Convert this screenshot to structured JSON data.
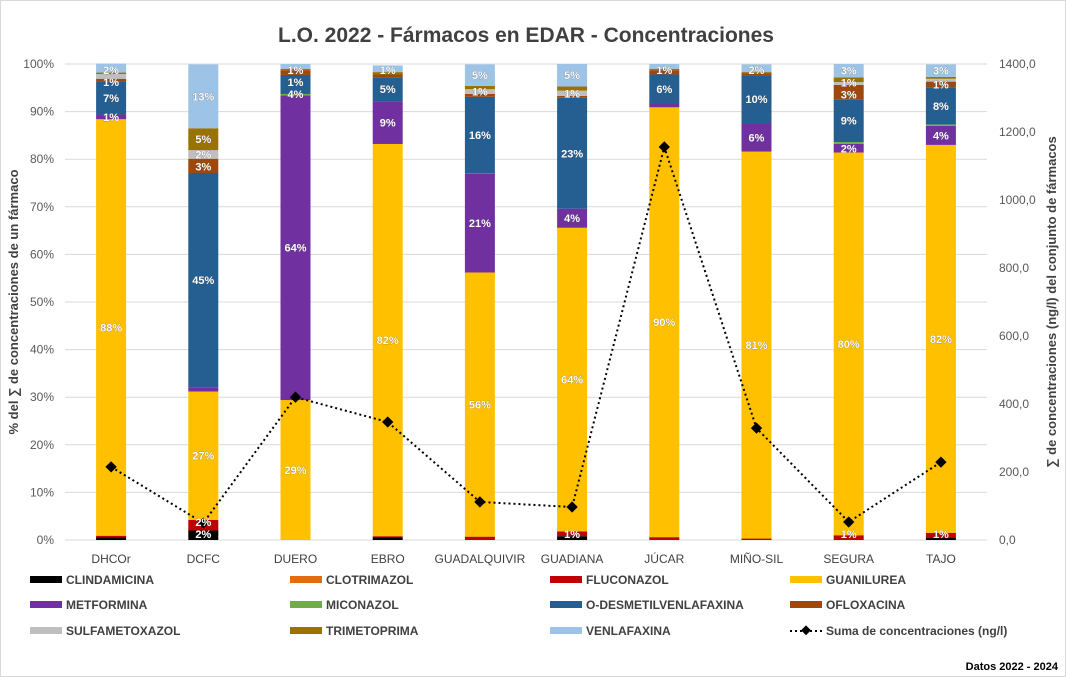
{
  "chart_data": {
    "type": "bar",
    "stacked": "percent",
    "title": "L.O. 2022 - Fármacos en EDAR - Concentraciones",
    "ylabel": "% del ∑ de concentraciones de un fármaco",
    "y2label": "∑ de concentraciones (ng/l) del conjunto de fármacos",
    "ylim": [
      0,
      100
    ],
    "y2lim": [
      0,
      1400
    ],
    "yticks": [
      "0%",
      "10%",
      "20%",
      "30%",
      "40%",
      "50%",
      "60%",
      "70%",
      "80%",
      "90%",
      "100%"
    ],
    "y2ticks": [
      "0,0",
      "200,0",
      "400,0",
      "600,0",
      "800,0",
      "1000,0",
      "1200,0",
      "1400,0"
    ],
    "grid": true,
    "legend": "bottom",
    "categories": [
      "DHCOr",
      "DCFC",
      "DUERO",
      "EBRO",
      "GUADALQUIVIR",
      "GUADIANA",
      "JÚCAR",
      "MIÑO-SIL",
      "SEGURA",
      "TAJO"
    ],
    "series": [
      {
        "name": "CLINDAMICINA",
        "color": "#000000",
        "values": [
          0.6,
          2.0,
          0,
          0.6,
          0,
          0.8,
          0,
          0,
          0,
          0.5
        ]
      },
      {
        "name": "CLOTRIMAZOL",
        "color": "#e46c0a",
        "values": [
          0,
          0,
          0,
          0,
          0,
          0,
          0,
          0,
          0,
          0
        ]
      },
      {
        "name": "FLUCONAZOL",
        "color": "#c00000",
        "values": [
          0.3,
          2.2,
          0,
          0.2,
          0.7,
          1.0,
          0.6,
          0.3,
          1.0,
          1.0
        ]
      },
      {
        "name": "GUANILUREA",
        "color": "#ffc000",
        "values": [
          87.5,
          27.0,
          29.4,
          82.4,
          55.5,
          63.8,
          90.3,
          81.3,
          80.4,
          81.5
        ]
      },
      {
        "name": "METFORMINA",
        "color": "#7030a0",
        "values": [
          1.0,
          0.9,
          64.0,
          9.0,
          20.8,
          4.0,
          0.9,
          6.0,
          1.8,
          4.0
        ]
      },
      {
        "name": "MICONAZOL",
        "color": "#70ad47",
        "values": [
          0,
          0,
          0.3,
          0,
          0.1,
          0,
          0,
          0,
          0.4,
          0.3
        ]
      },
      {
        "name": "O-DESMETILVENLAFAXINA",
        "color": "#255e91",
        "values": [
          7.0,
          45.0,
          4.0,
          5.0,
          16.0,
          23.3,
          6.0,
          10.0,
          9.0,
          7.8
        ]
      },
      {
        "name": "OFLOXACINA",
        "color": "#9e480e",
        "values": [
          0.5,
          3.0,
          1.0,
          0.6,
          0.6,
          0.4,
          0.9,
          0.4,
          3.0,
          1.2
        ]
      },
      {
        "name": "SULFAMETOXAZOL",
        "color": "#bfbfbf",
        "values": [
          1.0,
          1.8,
          0,
          0,
          1.0,
          1.1,
          0,
          0,
          0.6,
          0.6
        ]
      },
      {
        "name": "TRIMETOPRIMA",
        "color": "#997300",
        "values": [
          0.3,
          4.6,
          0.3,
          0.5,
          0.7,
          0.9,
          0.3,
          0.3,
          1.0,
          0.4
        ]
      },
      {
        "name": "VENLAFAXINA",
        "color": "#9dc3e6",
        "values": [
          1.9,
          13.4,
          1.0,
          1.4,
          4.5,
          4.7,
          1.0,
          1.6,
          2.8,
          2.6
        ]
      }
    ],
    "line_series": {
      "name": "Suma de concentraciones (ng/l)",
      "color": "#000000",
      "axis": "right",
      "values": [
        215,
        50,
        420,
        347,
        112,
        97,
        1156,
        329,
        53,
        229
      ]
    }
  },
  "footer": "Datos 2022 - 2024"
}
